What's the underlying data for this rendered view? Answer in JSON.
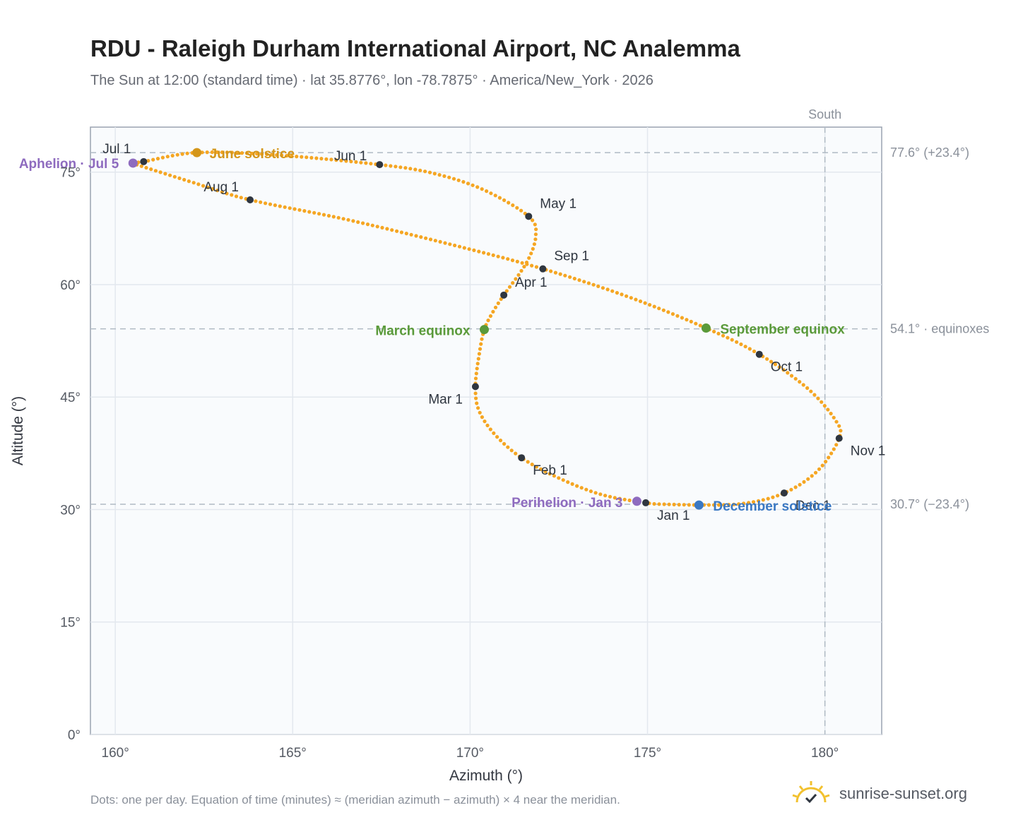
{
  "title": "RDU - Raleigh Durham International Airport, NC Analemma",
  "subtitle": "The Sun at 12:00 (standard time) · lat 35.8776°, lon -78.7875° · America/New_York · 2026",
  "footnote": "Dots: one per day. Equation of time (minutes) ≈ (meridian azimuth − azimuth) × 4 near the meridian.",
  "brand": {
    "name": "sunrise-sunset.org",
    "logo_icon": "sun-check-icon",
    "accent": "#f2c12e"
  },
  "colors": {
    "curve": "#f5a623",
    "month_marker": "#2f3640",
    "aphelion": "#8e6bbf",
    "perihelion": "#8e6bbf",
    "june_solstice": "#d4961a",
    "december_solstice": "#3a78c3",
    "equinox": "#5a9a3a",
    "plot_bg": "#f9fbfd",
    "grid": "#e3e8ee",
    "reference_line": "#b0bac4"
  },
  "chart_data": {
    "type": "scatter",
    "title": "RDU - Raleigh Durham International Airport, NC Analemma",
    "xlabel": "Azimuth (°)",
    "ylabel": "Altitude (°)",
    "xlim": [
      159.3,
      181.6
    ],
    "ylim": [
      0,
      81
    ],
    "xticks": [
      160,
      165,
      170,
      175,
      180
    ],
    "yticks": [
      0,
      15,
      30,
      45,
      60,
      75
    ],
    "x_tick_labels": [
      "160°",
      "165°",
      "170°",
      "175°",
      "180°"
    ],
    "y_tick_labels": [
      "0°",
      "15°",
      "30°",
      "45°",
      "60°",
      "75°"
    ],
    "grid": true,
    "south_label": "South",
    "south_azimuth": 180,
    "reference_lines": [
      {
        "altitude": 77.6,
        "label": "77.6° (+23.4°)"
      },
      {
        "altitude": 54.1,
        "label": "54.1° · equinoxes"
      },
      {
        "altitude": 30.7,
        "label": "30.7° (−23.4°)"
      }
    ],
    "month_markers": [
      {
        "label": "Jan 1",
        "az": 174.95,
        "alt": 30.9
      },
      {
        "label": "Feb 1",
        "az": 171.45,
        "alt": 36.9
      },
      {
        "label": "Mar 1",
        "az": 170.15,
        "alt": 46.4
      },
      {
        "label": "Apr 1",
        "az": 170.95,
        "alt": 58.6
      },
      {
        "label": "May 1",
        "az": 171.65,
        "alt": 69.1
      },
      {
        "label": "Jun 1",
        "az": 167.45,
        "alt": 76.0
      },
      {
        "label": "Jul 1",
        "az": 160.8,
        "alt": 76.4
      },
      {
        "label": "Aug 1",
        "az": 163.8,
        "alt": 71.3
      },
      {
        "label": "Sep 1",
        "az": 172.05,
        "alt": 62.1
      },
      {
        "label": "Oct 1",
        "az": 178.15,
        "alt": 50.7
      },
      {
        "label": "Nov 1",
        "az": 180.4,
        "alt": 39.5
      },
      {
        "label": "Dec 1",
        "az": 178.85,
        "alt": 32.2
      }
    ],
    "events": [
      {
        "label": "Aphelion · Jul 5",
        "az": 160.5,
        "alt": 76.2,
        "color_key": "aphelion"
      },
      {
        "label": "June solstice",
        "az": 162.3,
        "alt": 77.6,
        "color_key": "june_solstice"
      },
      {
        "label": "March equinox",
        "az": 170.4,
        "alt": 54.0,
        "color_key": "equinox"
      },
      {
        "label": "September equinox",
        "az": 176.65,
        "alt": 54.2,
        "color_key": "equinox"
      },
      {
        "label": "Perihelion · Jan 3",
        "az": 174.7,
        "alt": 31.1,
        "color_key": "perihelion"
      },
      {
        "label": "December solstice",
        "az": 176.45,
        "alt": 30.6,
        "color_key": "december_solstice"
      }
    ],
    "daily_points_note": "Dots: one per day",
    "path_control_points": [
      [
        176.45,
        30.6
      ],
      [
        175.5,
        30.7
      ],
      [
        174.95,
        30.9
      ],
      [
        173.7,
        32.0
      ],
      [
        172.5,
        34.2
      ],
      [
        171.45,
        36.9
      ],
      [
        170.7,
        40.0
      ],
      [
        170.25,
        43.2
      ],
      [
        170.15,
        46.4
      ],
      [
        170.25,
        50.5
      ],
      [
        170.4,
        54.0
      ],
      [
        170.65,
        56.4
      ],
      [
        170.95,
        58.6
      ],
      [
        171.6,
        63.0
      ],
      [
        171.85,
        66.5
      ],
      [
        171.65,
        69.1
      ],
      [
        170.4,
        72.6
      ],
      [
        169.0,
        74.8
      ],
      [
        167.45,
        76.0
      ],
      [
        164.5,
        77.3
      ],
      [
        162.3,
        77.6
      ],
      [
        160.8,
        76.4
      ],
      [
        160.5,
        76.2
      ],
      [
        160.8,
        75.7
      ],
      [
        162.2,
        73.6
      ],
      [
        163.8,
        71.3
      ],
      [
        166.5,
        68.7
      ],
      [
        169.5,
        65.3
      ],
      [
        172.05,
        62.1
      ],
      [
        174.5,
        58.3
      ],
      [
        176.65,
        54.2
      ],
      [
        178.15,
        50.7
      ],
      [
        179.5,
        46.2
      ],
      [
        180.3,
        41.9
      ],
      [
        180.4,
        39.5
      ],
      [
        179.8,
        35.2
      ],
      [
        178.85,
        32.2
      ],
      [
        177.7,
        30.8
      ],
      [
        176.45,
        30.6
      ]
    ]
  }
}
